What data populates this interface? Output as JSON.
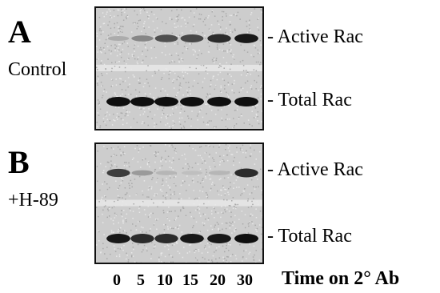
{
  "panels": [
    {
      "letter": "A",
      "condition": "Control",
      "bands": [
        {
          "label": "- Active Rac",
          "intensity": [
            0.15,
            0.35,
            0.65,
            0.7,
            0.85,
            0.95
          ]
        },
        {
          "label": "- Total Rac",
          "intensity": [
            1,
            1,
            1,
            1,
            1,
            1
          ]
        }
      ]
    },
    {
      "letter": "B",
      "condition": "+H-89",
      "bands": [
        {
          "label": "- Active Rac",
          "intensity": [
            0.75,
            0.25,
            0.1,
            0.05,
            0.1,
            0.85
          ]
        },
        {
          "label": "- Total Rac",
          "intensity": [
            0.95,
            0.85,
            0.85,
            0.95,
            0.95,
            1
          ]
        }
      ]
    }
  ],
  "lanes": [
    "0",
    "5",
    "10",
    "15",
    "20",
    "30"
  ],
  "x_axis_label": "Time on 2° Ab"
}
